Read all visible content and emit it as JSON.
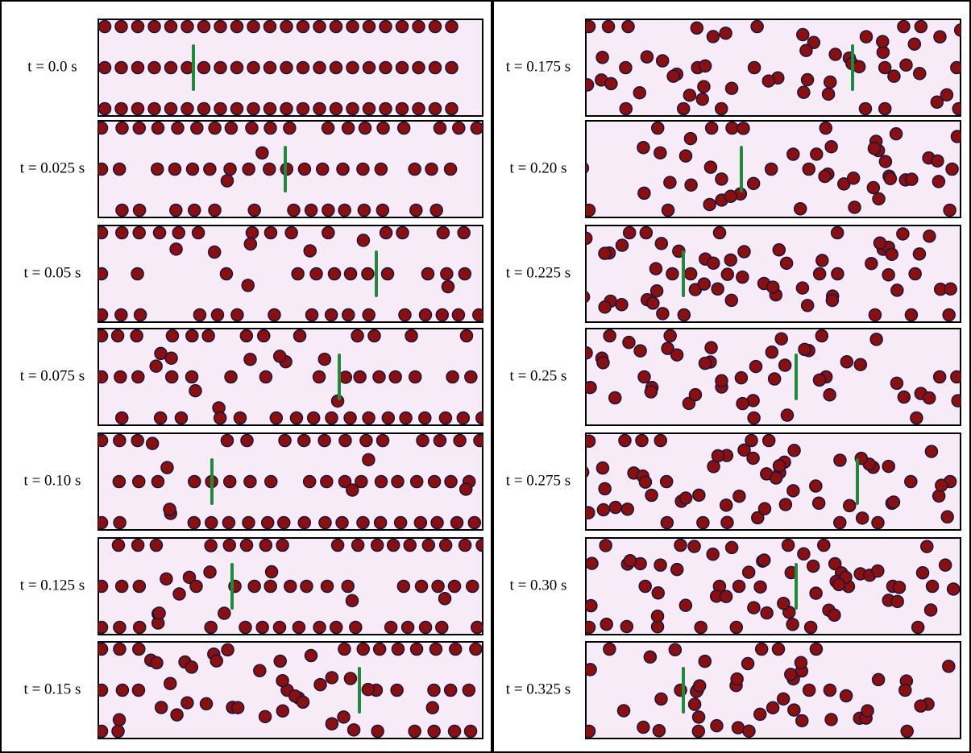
{
  "panels": [
    {
      "label": "t = 0.0 s"
    },
    {
      "label": "t = 0.025 s"
    },
    {
      "label": "t = 0.05 s"
    },
    {
      "label": "t = 0.075 s"
    },
    {
      "label": "t = 0.10 s"
    },
    {
      "label": "t = 0.125 s"
    },
    {
      "label": "t = 0.15 s"
    },
    {
      "label": "t = 0.175 s"
    },
    {
      "label": "t = 0.20 s"
    },
    {
      "label": "t = 0.225 s"
    },
    {
      "label": "t = 0.25 s"
    },
    {
      "label": "t = 0.275 s"
    },
    {
      "label": "t = 0.30 s"
    },
    {
      "label": "t = 0.325 s"
    }
  ]
}
